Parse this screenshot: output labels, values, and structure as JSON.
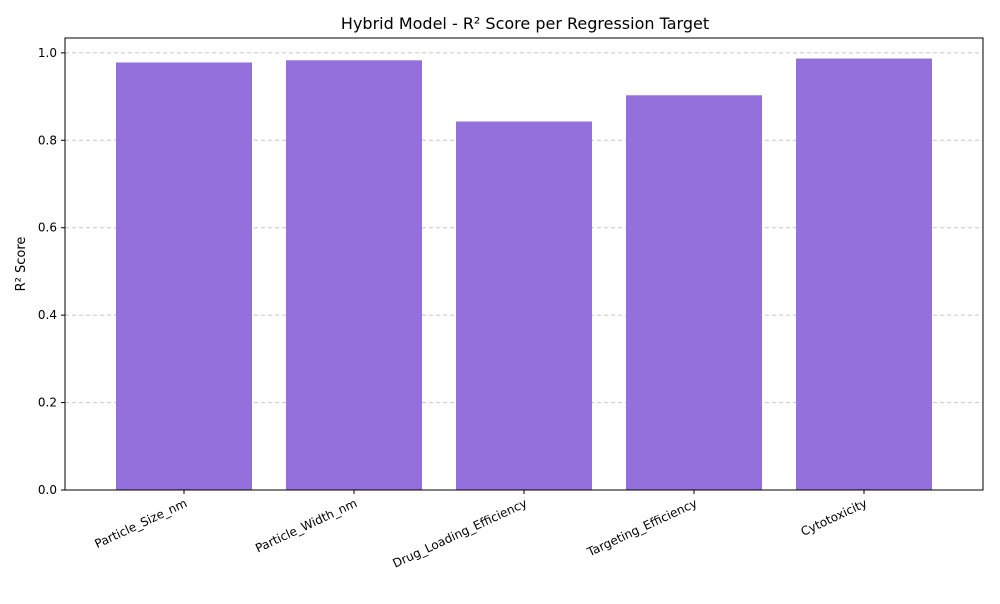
{
  "chart_data": {
    "type": "bar",
    "title": "Hybrid Model - R² Score per Regression Target",
    "xlabel": "",
    "ylabel": "R² Score",
    "categories": [
      "Particle_Size_nm",
      "Particle_Width_nm",
      "Drug_Loading_Efficiency",
      "Targeting_Efficiency",
      "Cytotoxicity"
    ],
    "values": [
      0.978,
      0.983,
      0.843,
      0.903,
      0.987
    ],
    "ylim": [
      0,
      1.034
    ],
    "yticks": [
      0.0,
      0.2,
      0.4,
      0.6,
      0.8,
      1.0
    ],
    "ytick_labels": [
      "0.0",
      "0.2",
      "0.4",
      "0.6",
      "0.8",
      "1.0"
    ],
    "bar_color": "#9370DB",
    "grid": "y-dashed",
    "legend": "none"
  }
}
